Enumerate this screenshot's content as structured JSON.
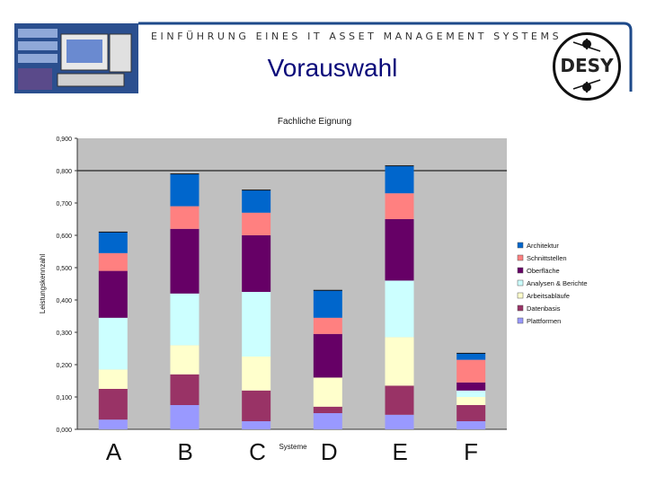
{
  "header": {
    "subtitle": "EINFÜHRUNG EINES IT ASSET MANAGEMENT SYSTEMS",
    "title": "Vorauswahl",
    "logo_text": "DESY"
  },
  "colors": {
    "banner_blue": "#1e4a8a",
    "title_blue": "#0a0a7a",
    "plot_bg": "#c0c0c0"
  },
  "chart_data": {
    "type": "bar",
    "stacked": true,
    "title": "Fachliche Eignung",
    "xlabel": "Systeme",
    "ylabel": "Leistungskennzahl",
    "ylim": [
      0,
      0.9
    ],
    "yticks": [
      "0,000",
      "0,100",
      "0,200",
      "0,300",
      "0,400",
      "0,500",
      "0,600",
      "0,700",
      "0,800",
      "0,900"
    ],
    "reference_line": 0.8,
    "categories": [
      "A",
      "B",
      "C",
      "D",
      "E",
      "F"
    ],
    "legend_position": "right",
    "series": [
      {
        "name": "Plattformen",
        "color": "#9999ff",
        "values": [
          0.03,
          0.075,
          0.025,
          0.05,
          0.045,
          0.025
        ]
      },
      {
        "name": "Datenbasis",
        "color": "#993366",
        "values": [
          0.095,
          0.095,
          0.095,
          0.02,
          0.09,
          0.05
        ]
      },
      {
        "name": "Arbeitsabläufe",
        "color": "#ffffcc",
        "values": [
          0.06,
          0.09,
          0.105,
          0.09,
          0.15,
          0.025
        ]
      },
      {
        "name": "Analysen & Berichte",
        "color": "#ccffff",
        "values": [
          0.16,
          0.16,
          0.2,
          0.0,
          0.175,
          0.02
        ]
      },
      {
        "name": "Oberfläche",
        "color": "#660066",
        "values": [
          0.145,
          0.2,
          0.175,
          0.135,
          0.19,
          0.025
        ]
      },
      {
        "name": "Schnittstellen",
        "color": "#ff8080",
        "values": [
          0.055,
          0.07,
          0.07,
          0.05,
          0.08,
          0.07
        ]
      },
      {
        "name": "Architektur",
        "color": "#0066cc",
        "values": [
          0.065,
          0.1,
          0.07,
          0.085,
          0.085,
          0.02
        ]
      }
    ]
  }
}
